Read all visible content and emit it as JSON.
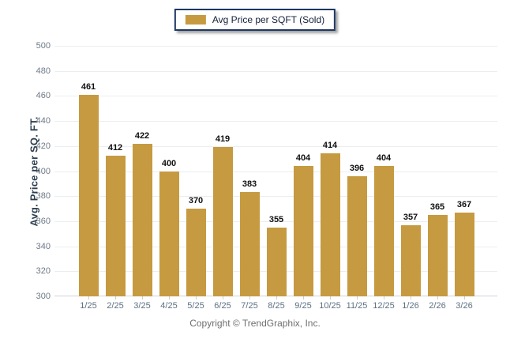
{
  "legend": {
    "label": "Avg Price per SQFT (Sold)",
    "swatch_color": "#C69A40"
  },
  "chart_data": {
    "type": "bar",
    "title": "",
    "categories": [
      "1/25",
      "2/25",
      "3/25",
      "4/25",
      "5/25",
      "6/25",
      "7/25",
      "8/25",
      "9/25",
      "10/25",
      "11/25",
      "12/25",
      "1/26",
      "2/26",
      "3/26"
    ],
    "values": [
      461,
      412,
      422,
      400,
      370,
      419,
      383,
      355,
      404,
      414,
      396,
      404,
      357,
      365,
      367
    ],
    "xlabel": "",
    "ylabel": "Avg. Price per SQ. FT.",
    "ylim": [
      300,
      500
    ],
    "ytick_step": 20,
    "grid": true,
    "legend_position": "top-center",
    "bar_color": "#C69A40"
  },
  "footer": {
    "copyright": "Copyright © TrendGraphix, Inc."
  }
}
